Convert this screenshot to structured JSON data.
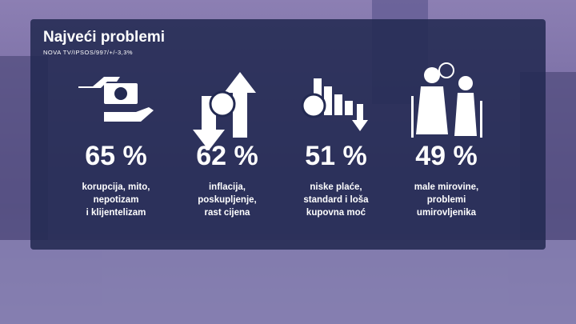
{
  "header": {
    "title": "Najveći problemi",
    "source": "NOVA TV/IPSOS/997/+/-3,3%"
  },
  "items": [
    {
      "value": "65 %",
      "lines": [
        "korupcija, mito,",
        "nepotizam",
        "i klijentelizam"
      ]
    },
    {
      "value": "62 %",
      "lines": [
        "inflacija,",
        "poskupljenje,",
        "rast cijena"
      ]
    },
    {
      "value": "51 %",
      "lines": [
        "niske plaće,",
        "standard i loša",
        "kupovna moć"
      ]
    },
    {
      "value": "49 %",
      "lines": [
        "male mirovine,",
        "problemi",
        "umirovljenika"
      ]
    }
  ]
}
